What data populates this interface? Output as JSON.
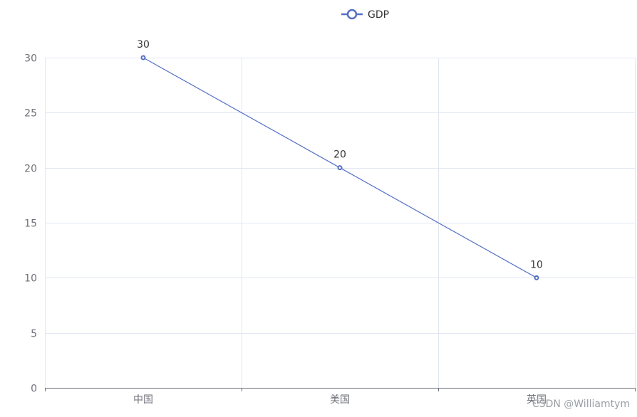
{
  "chart_data": {
    "type": "line",
    "categories": [
      "中国",
      "美国",
      "英国"
    ],
    "series": [
      {
        "name": "GDP",
        "values": [
          30,
          20,
          10
        ]
      }
    ],
    "ylim": [
      0,
      30
    ],
    "yticks": [
      0,
      5,
      10,
      15,
      20,
      25,
      30
    ],
    "grid": true,
    "legend": "top-center",
    "show_data_labels": true,
    "colors": {
      "series": "#5470c6",
      "grid": "#e0e6f1",
      "axis": "#6e7079",
      "label": "#333333"
    }
  },
  "watermark": "CSDN @Williamtym"
}
